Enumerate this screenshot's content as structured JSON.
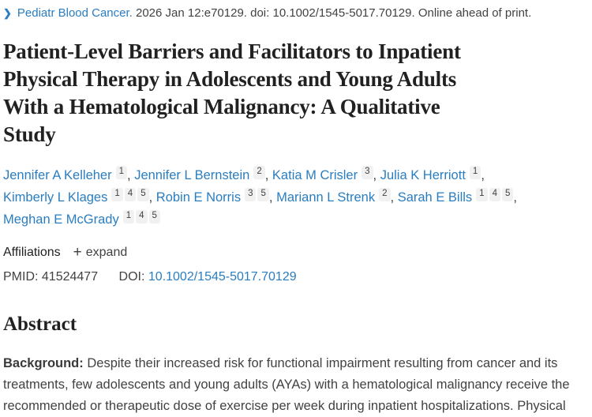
{
  "citation_bar": {
    "chevron": "❯",
    "journal": "Pediatr Blood Cancer.",
    "details": " 2026 Jan 12:e70129. doi: 10.1002/1545-5017.70129. Online ahead of print."
  },
  "title": {
    "lines": [
      "Patient-Level Barriers and Facilitators to Inpatient",
      "Physical Therapy in Adolescents and Young Adults",
      "With a Hematological Malignancy: A Qualitative",
      "Study"
    ]
  },
  "authors": [
    {
      "name": "Jennifer A Kelleher",
      "sups": [
        "1"
      ]
    },
    {
      "name": "Jennifer L Bernstein",
      "sups": [
        "2"
      ]
    },
    {
      "name": "Katia M Crisler",
      "sups": [
        "3"
      ]
    },
    {
      "name": "Julia K Herriott",
      "sups": [
        "1"
      ]
    },
    {
      "name": "Kimberly L Klages",
      "sups": [
        "1",
        "4",
        "5"
      ]
    },
    {
      "name": "Robin E Norris",
      "sups": [
        "3",
        "5"
      ]
    },
    {
      "name": "Mariann L Strenk",
      "sups": [
        "2"
      ]
    },
    {
      "name": "Sarah E Bills",
      "sups": [
        "1",
        "4",
        "5"
      ]
    },
    {
      "name": "Meghan E McGrady",
      "sups": [
        "1",
        "4",
        "5"
      ]
    }
  ],
  "affiliations": {
    "label": "Affiliations",
    "plus": "+",
    "expand_label": "expand"
  },
  "identifiers": {
    "pmid_label": "PMID:",
    "pmid_value": "41524477",
    "doi_label": "DOI:",
    "doi_value": "10.1002/1545-5017.70129"
  },
  "abstract": {
    "heading": "Abstract",
    "background_label": "Background:",
    "background_text": " Despite their increased risk for functional impairment resulting from cancer and its treatments, few adolescents and young adults (AYAs) with a hematological malignancy receive the recommended or therapeutic dose of exercise per week during inpatient hospitalizations. Physical"
  },
  "colors": {
    "link_blue": "#2a7dc0",
    "title_text": "#212121",
    "body_text": "#424242",
    "sup_badge_bg": "#f1f1f2"
  }
}
